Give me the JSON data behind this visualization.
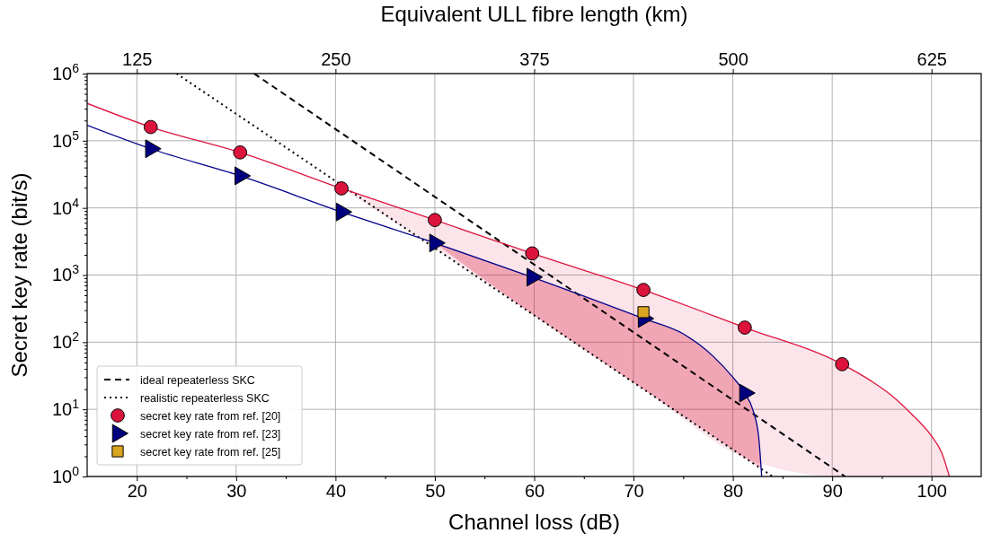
{
  "chart_data": {
    "type": "line",
    "xlabel": "Channel loss (dB)",
    "ylabel": "Secret key rate (bit/s)",
    "x2label": "Equivalent ULL fibre length (km)",
    "xlim": [
      15,
      105
    ],
    "xticks": [
      20,
      {
        "value": 25,
        "label": null
      },
      30,
      {
        "value": 35,
        "label": null
      },
      40,
      {
        "value": 45,
        "label": null
      },
      50,
      {
        "value": 55,
        "label": null
      },
      60,
      {
        "value": 65,
        "label": null
      },
      70,
      {
        "value": 75,
        "label": null
      },
      80,
      {
        "value": 85,
        "label": null
      },
      90,
      {
        "value": 95,
        "label": null
      },
      100
    ],
    "x2lim": [
      93.75,
      656.25
    ],
    "x2ticks": [
      125,
      250,
      375,
      500,
      625
    ],
    "ylim": [
      1,
      1000000
    ],
    "log": true,
    "yticks": [
      {
        "value": 1,
        "label": "10$^{0}$"
      },
      {
        "value": 10,
        "label": "10$^{1}$"
      },
      {
        "value": 100,
        "label": "10$^{2}$"
      },
      {
        "value": 1000,
        "label": "10$^{3}$"
      },
      {
        "value": 10000,
        "label": "10$^{4}$"
      },
      {
        "value": 100000,
        "label": "10$^{5}$"
      },
      {
        "value": 1000000,
        "label": "10$^{6}$"
      },
      {
        "value": 2,
        "label": null
      },
      {
        "value": 3,
        "label": null
      },
      {
        "value": 4,
        "label": null
      },
      {
        "value": 5,
        "label": null
      },
      {
        "value": 6,
        "label": null
      },
      {
        "value": 7,
        "label": null
      },
      {
        "value": 8,
        "label": null
      },
      {
        "value": 9,
        "label": null
      },
      {
        "value": 20,
        "label": null
      },
      {
        "value": 30,
        "label": null
      },
      {
        "value": 40,
        "label": null
      },
      {
        "value": 50,
        "label": null
      },
      {
        "value": 60,
        "label": null
      },
      {
        "value": 70,
        "label": null
      },
      {
        "value": 80,
        "label": null
      },
      {
        "value": 90,
        "label": null
      },
      {
        "value": 200,
        "label": null
      },
      {
        "value": 300,
        "label": null
      },
      {
        "value": 400,
        "label": null
      },
      {
        "value": 500,
        "label": null
      },
      {
        "value": 600,
        "label": null
      },
      {
        "value": 700,
        "label": null
      },
      {
        "value": 800,
        "label": null
      },
      {
        "value": 900,
        "label": null
      },
      {
        "value": 2000,
        "label": null
      },
      {
        "value": 3000,
        "label": null
      },
      {
        "value": 4000,
        "label": null
      },
      {
        "value": 5000,
        "label": null
      },
      {
        "value": 6000,
        "label": null
      },
      {
        "value": 7000,
        "label": null
      },
      {
        "value": 8000,
        "label": null
      },
      {
        "value": 9000,
        "label": null
      },
      {
        "value": 20000,
        "label": null
      },
      {
        "value": 30000,
        "label": null
      },
      {
        "value": 40000,
        "label": null
      },
      {
        "value": 50000,
        "label": null
      },
      {
        "value": 60000,
        "label": null
      },
      {
        "value": 70000,
        "label": null
      },
      {
        "value": 80000,
        "label": null
      },
      {
        "value": 90000,
        "label": null
      },
      {
        "value": 200000,
        "label": null
      },
      {
        "value": 300000,
        "label": null
      },
      {
        "value": 400000,
        "label": null
      },
      {
        "value": 500000,
        "label": null
      },
      {
        "value": 600000,
        "label": null
      },
      {
        "value": 700000,
        "label": null
      },
      {
        "value": 800000,
        "label": null
      },
      {
        "value": 900000,
        "label": null
      }
    ],
    "grid": true,
    "legend": "bottom left",
    "series": [
      {
        "name": "ideal repeaterless SKC",
        "line_style": "dashed",
        "color": "#000000",
        "x": [
          31.8,
          91.3
        ],
        "values": [
          1000000,
          1
        ]
      },
      {
        "name": "realistic repeaterless SKC",
        "line_style": "dotted",
        "color": "#000000",
        "x": [
          24,
          84
        ],
        "values": [
          1000000,
          1
        ]
      },
      {
        "line_style": "solid",
        "color": "#dc143c",
        "x": [
          15,
          21.4,
          30.4,
          40.6,
          50,
          59.8,
          71,
          81.2,
          91,
          94,
          96,
          98,
          100,
          101,
          101.8
        ],
        "values": [
          360000,
          160000,
          67000,
          19500,
          6600,
          2100,
          600,
          165,
          47,
          26,
          16,
          8.5,
          4,
          2.3,
          1
        ],
        "lower": [
          null,
          null,
          null,
          19500,
          2500,
          263,
          20,
          1.9,
          1,
          1,
          1,
          1,
          1,
          1,
          1
        ],
        "upper": [
          null,
          null,
          null,
          19500,
          6600,
          2100,
          600,
          165,
          47,
          26,
          16,
          8.5,
          4,
          2.3,
          1
        ]
      },
      {
        "line_style": "solid",
        "color": "#00008b",
        "x": [
          15,
          21.4,
          30.4,
          40.6,
          50,
          59.8,
          71,
          75,
          78,
          80,
          81.2,
          82,
          82.6,
          82.9
        ],
        "values": [
          170000,
          76000,
          30000,
          8700,
          3000,
          930,
          225,
          133,
          62,
          30,
          17.5,
          10,
          3.9,
          1
        ],
        "lower": [
          null,
          null,
          null,
          null,
          3000,
          263,
          20,
          8,
          4,
          2.5,
          1.9,
          1.6,
          1.4,
          1.3
        ],
        "upper": [
          null,
          null,
          null,
          null,
          3000,
          930,
          225,
          133,
          62,
          30,
          17.5,
          10,
          3.9,
          1.3
        ]
      },
      {
        "name": "secret key rate from ref. [20]",
        "type": "scatter",
        "marker": "circle",
        "color": "#dc143c",
        "x": [
          21.4,
          30.4,
          40.6,
          50,
          59.8,
          71,
          81.2,
          91
        ],
        "values": [
          160000,
          67000,
          19500,
          6600,
          2100,
          600,
          165,
          47
        ]
      },
      {
        "name": "secret key rate from ref. [23]",
        "type": "scatter",
        "marker": "triangle",
        "color": "#00007f",
        "x": [
          21.4,
          30.4,
          40.6,
          50,
          59.8,
          71,
          81.2
        ],
        "values": [
          76000,
          30000,
          8700,
          3000,
          930,
          225,
          17.5
        ]
      },
      {
        "name": "secret key rate from ref. [25]",
        "type": "scatter",
        "marker": "square",
        "color": "#daa520",
        "x": [
          71
        ],
        "values": [
          280
        ]
      }
    ]
  }
}
